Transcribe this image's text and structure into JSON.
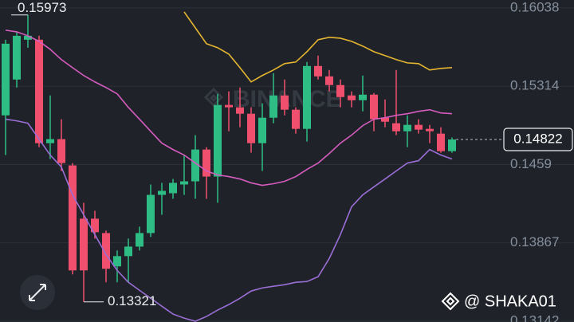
{
  "chart_data": {
    "type": "candlestick",
    "watermark": "BINANCE",
    "credit": "@ SHAKA01",
    "up_color": "#2ebd85",
    "down_color": "#f0506e",
    "grid": true,
    "ylim": [
      0.13135,
      0.16111
    ],
    "yticks": [
      0.16038,
      0.15314,
      0.1459,
      0.13867,
      0.13142
    ],
    "open": [
      0.15045,
      0.15376,
      0.15744,
      0.15744,
      0.14788,
      0.14825,
      0.14582,
      0.1409,
      0.1409,
      0.13957,
      0.13649,
      0.13744,
      0.13832,
      0.13957,
      0.1431,
      0.14325,
      0.14406,
      0.14435,
      0.14729,
      0.14479,
      0.15141,
      0.15119,
      0.1506,
      0.14788,
      0.15023,
      0.15229,
      0.15097,
      0.1492,
      0.15501,
      0.15405,
      0.15325,
      0.15229,
      0.15185,
      0.15236,
      0.15023,
      0.14972,
      0.14898,
      0.14957,
      0.1492,
      0.14876,
      0.14714
    ],
    "high": [
      0.15744,
      0.15817,
      0.15973,
      0.1578,
      0.15229,
      0.15009,
      0.14604,
      0.14237,
      0.14163,
      0.1398,
      0.13796,
      0.13906,
      0.14016,
      0.14406,
      0.14421,
      0.14457,
      0.14678,
      0.14862,
      0.14751,
      0.15244,
      0.15266,
      0.15302,
      0.15119,
      0.15156,
      0.15435,
      0.15376,
      0.15119,
      0.15538,
      0.15597,
      0.15464,
      0.15376,
      0.15266,
      0.15413,
      0.15251,
      0.15192,
      0.15464,
      0.15045,
      0.15009,
      0.14957,
      0.14935,
      0.1484
    ],
    "low": [
      0.14678,
      0.15302,
      0.1567,
      0.14751,
      0.14641,
      0.14531,
      0.13575,
      0.13321,
      0.13906,
      0.13502,
      0.13502,
      0.13502,
      0.13796,
      0.13921,
      0.14126,
      0.14274,
      0.1431,
      0.14274,
      0.14274,
      0.14237,
      0.14898,
      0.14935,
      0.147,
      0.14531,
      0.14972,
      0.15045,
      0.14876,
      0.14803,
      0.15376,
      0.15266,
      0.15119,
      0.15119,
      0.15082,
      0.14898,
      0.14935,
      0.14862,
      0.14751,
      0.14876,
      0.14788,
      0.147,
      0.147
    ],
    "close": [
      0.15707,
      0.1578,
      0.1578,
      0.14788,
      0.14825,
      0.14604,
      0.13612,
      0.13612,
      0.13965,
      0.13627,
      0.13744,
      0.13832,
      0.13957,
      0.1431,
      0.14347,
      0.14421,
      0.14435,
      0.14729,
      0.14479,
      0.15141,
      0.15119,
      0.1506,
      0.14788,
      0.15023,
      0.15229,
      0.15097,
      0.1492,
      0.15501,
      0.15405,
      0.15325,
      0.15214,
      0.15185,
      0.15236,
      0.15009,
      0.14986,
      0.14898,
      0.14957,
      0.14913,
      0.14898,
      0.14714,
      0.14822
    ],
    "bands": [
      {
        "color": "#e5b530",
        "values": [
          null,
          null,
          null,
          null,
          null,
          null,
          null,
          null,
          null,
          null,
          null,
          null,
          null,
          null,
          null,
          null,
          0.16001,
          0.15854,
          0.15707,
          0.1567,
          0.15611,
          0.15486,
          0.15354,
          0.15413,
          0.15464,
          0.15523,
          0.15538,
          0.15633,
          0.15744,
          0.15766,
          0.15758,
          0.15729,
          0.15685,
          0.15633,
          0.15597,
          0.1556,
          0.1553,
          0.15523,
          0.15464,
          0.15479,
          0.15486
        ]
      },
      {
        "color": "#d65bbf",
        "values": [
          0.15832,
          0.15817,
          0.1578,
          0.15729,
          0.15655,
          0.1556,
          0.15486,
          0.15413,
          0.15354,
          0.15302,
          0.15244,
          0.15119,
          0.15009,
          0.14898,
          0.14788,
          0.14729,
          0.14678,
          0.14604,
          0.14531,
          0.14494,
          0.14479,
          0.14457,
          0.14421,
          0.14398,
          0.14413,
          0.14435,
          0.14479,
          0.14545,
          0.14604,
          0.14692,
          0.14788,
          0.14862,
          0.1495,
          0.15009,
          0.15023,
          0.15045,
          0.1506,
          0.15082,
          0.15097,
          0.15067,
          0.1506
        ]
      },
      {
        "color": "#9a6ed6",
        "values": [
          0.15009,
          0.14994,
          0.14972,
          0.14825,
          0.14678,
          0.14567,
          0.1431,
          0.14126,
          0.13943,
          0.13759,
          0.13612,
          0.13502,
          0.13428,
          0.13355,
          0.13281,
          0.13208,
          0.13171,
          0.13142,
          0.13186,
          0.13245,
          0.13296,
          0.13355,
          0.13421,
          0.1345,
          0.13465,
          0.1348,
          0.13502,
          0.13509,
          0.13553,
          0.13722,
          0.13943,
          0.142,
          0.1431,
          0.14384,
          0.14457,
          0.14531,
          0.14604,
          0.14626,
          0.14729,
          0.14678,
          0.14641
        ]
      }
    ]
  }
}
